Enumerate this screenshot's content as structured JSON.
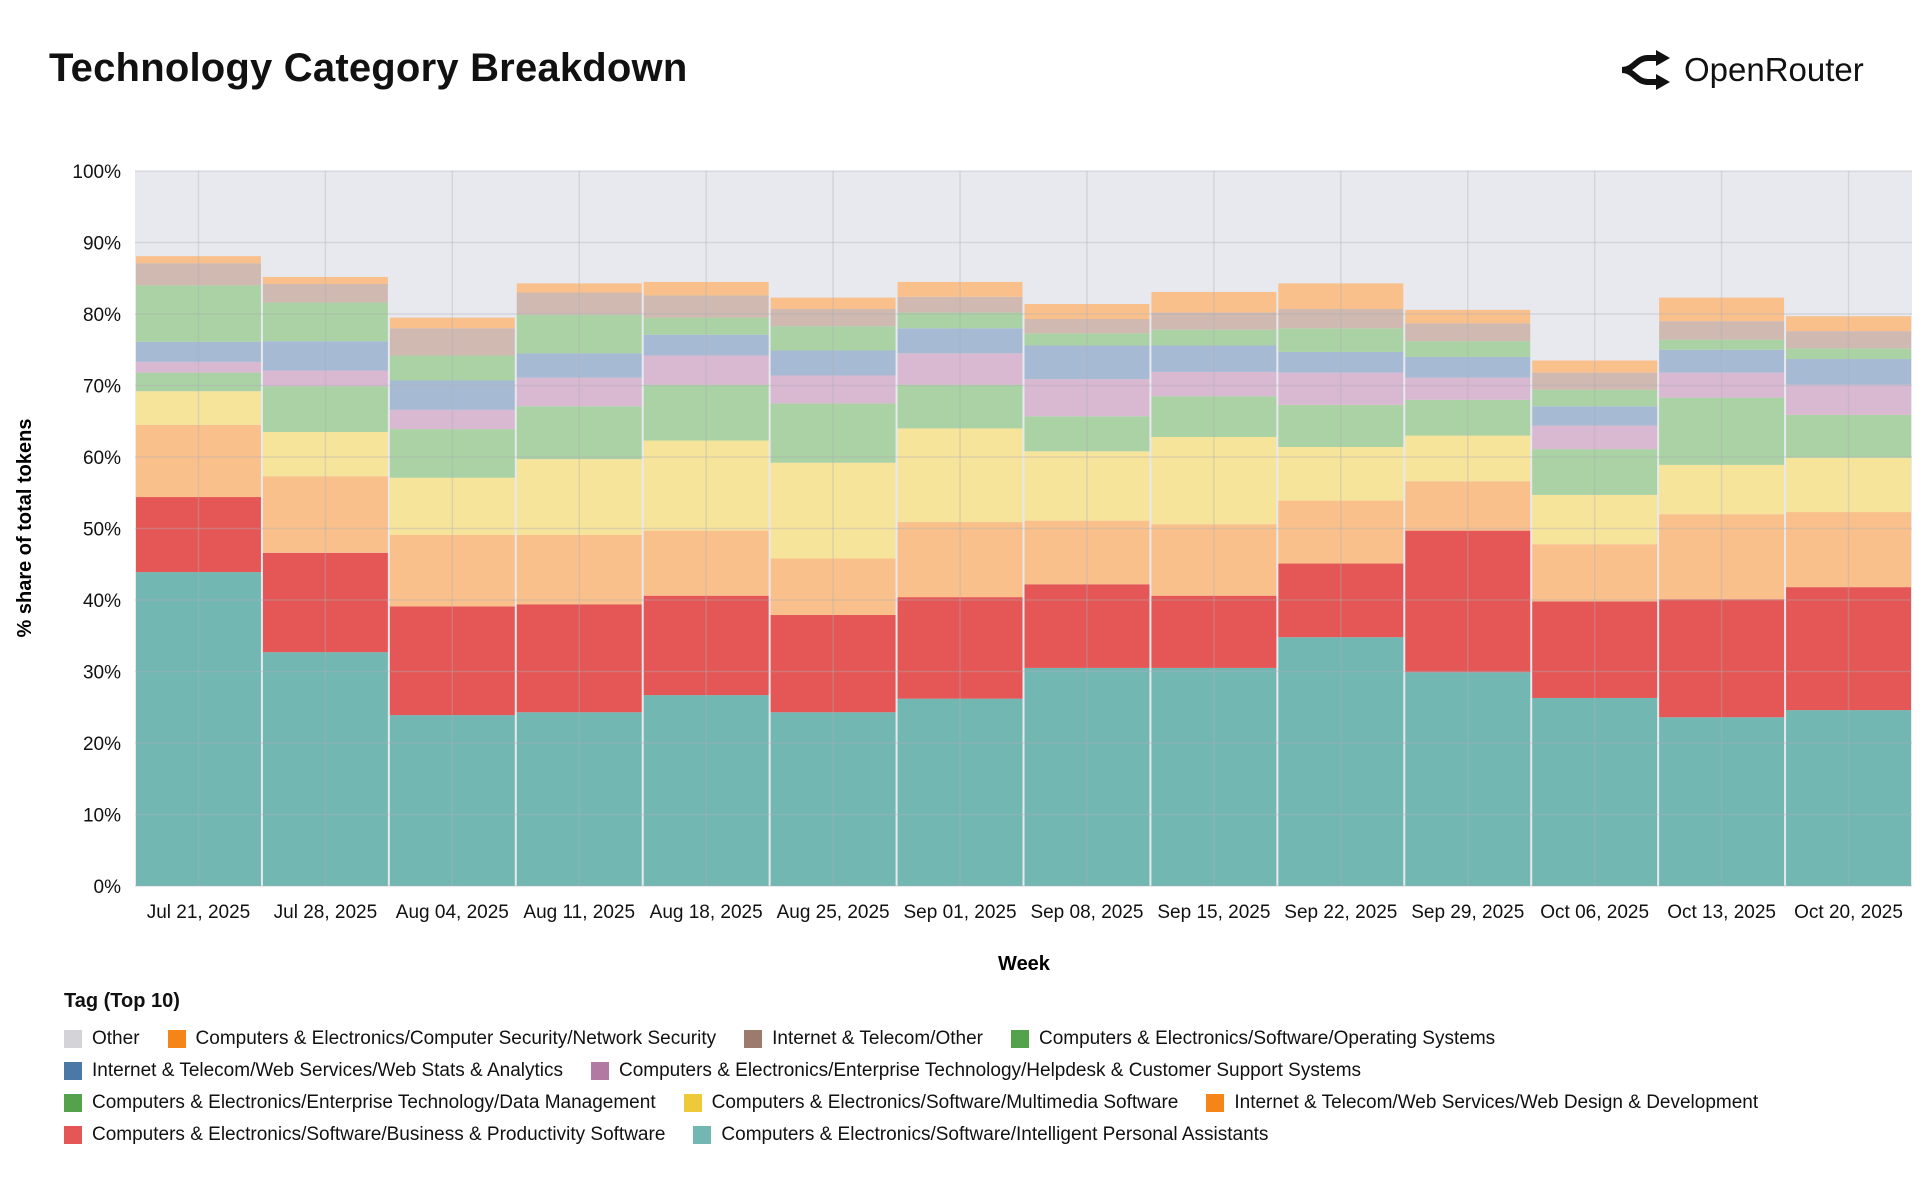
{
  "header": {
    "title": "Technology Category Breakdown",
    "logo_text": "OpenRouter"
  },
  "chart_data": {
    "type": "bar",
    "stacked": true,
    "title": "Technology Category Breakdown",
    "xlabel": "Week",
    "ylabel": "% share of total tokens",
    "ylim": [
      0,
      100
    ],
    "yticks": [
      "0%",
      "10%",
      "20%",
      "30%",
      "40%",
      "50%",
      "60%",
      "70%",
      "80%",
      "90%",
      "100%"
    ],
    "grid": true,
    "legend_title": "Tag (Top 10)",
    "legend_position": "bottom",
    "categories": [
      "Jul 21, 2025",
      "Jul 28, 2025",
      "Aug 04, 2025",
      "Aug 11, 2025",
      "Aug 18, 2025",
      "Aug 25, 2025",
      "Sep 01, 2025",
      "Sep 08, 2025",
      "Sep 15, 2025",
      "Sep 22, 2025",
      "Sep 29, 2025",
      "Oct 06, 2025",
      "Oct 13, 2025",
      "Oct 20, 2025"
    ],
    "series": [
      {
        "name": "Computers & Electronics/Software/Intelligent Personal Assistants",
        "color": "#72b7b2",
        "fill": "#72b7b2",
        "values": [
          43.9,
          32.7,
          23.9,
          24.3,
          26.7,
          24.3,
          26.2,
          30.5,
          30.5,
          34.8,
          29.9,
          26.3,
          23.6,
          24.6
        ]
      },
      {
        "name": "Computers & Electronics/Software/Business & Productivity Software",
        "color": "#e45756",
        "fill": "#e45756",
        "values": [
          10.5,
          13.9,
          15.2,
          15.1,
          13.9,
          13.6,
          14.2,
          11.7,
          10.1,
          10.3,
          19.8,
          13.5,
          16.5,
          17.2
        ]
      },
      {
        "name": "Internet & Telecom/Web Services/Web Design & Development",
        "color": "#f58518",
        "fill": "#f9c08b",
        "values": [
          10.1,
          10.7,
          10.0,
          9.7,
          9.1,
          7.9,
          10.5,
          8.9,
          10.0,
          8.8,
          6.9,
          8.0,
          11.9,
          10.5
        ]
      },
      {
        "name": "Computers & Electronics/Software/Multimedia Software",
        "color": "#eeca3b",
        "fill": "#f6e49b",
        "values": [
          4.7,
          6.2,
          8.0,
          10.6,
          12.6,
          13.4,
          13.1,
          9.7,
          12.2,
          7.5,
          6.4,
          6.9,
          6.9,
          7.6
        ]
      },
      {
        "name": "Computers & Electronics/Enterprise Technology/Data Management",
        "color": "#54a24b",
        "fill": "#aad2a4",
        "values": [
          2.6,
          6.4,
          6.8,
          7.4,
          7.8,
          8.3,
          6.1,
          4.9,
          5.7,
          5.9,
          5.0,
          6.4,
          9.4,
          6.0
        ]
      },
      {
        "name": "Computers & Electronics/Enterprise Technology/Helpdesk & Customer Support Systems",
        "color": "#b279a2",
        "fill": "#d9b9d1",
        "values": [
          1.5,
          2.2,
          2.7,
          4.0,
          4.1,
          3.9,
          4.4,
          5.2,
          3.4,
          4.5,
          3.1,
          3.3,
          3.5,
          4.2
        ]
      },
      {
        "name": "Internet & Telecom/Web Services/Web Stats & Analytics",
        "color": "#4c78a8",
        "fill": "#a6bad3",
        "values": [
          2.8,
          4.1,
          4.1,
          3.4,
          2.9,
          3.5,
          3.5,
          4.7,
          3.7,
          2.9,
          2.9,
          2.7,
          3.2,
          3.6
        ]
      },
      {
        "name": "Computers & Electronics/Software/Operating Systems",
        "color": "#54a24b",
        "fill": "#aad2a4",
        "values": [
          7.9,
          5.4,
          3.5,
          5.4,
          2.4,
          3.4,
          2.2,
          1.7,
          2.2,
          3.3,
          2.2,
          2.3,
          1.4,
          1.5
        ]
      },
      {
        "name": "Internet & Telecom/Other",
        "color": "#9d7a6e",
        "fill": "#cfb9b0",
        "values": [
          3.1,
          2.6,
          3.8,
          3.1,
          3.1,
          2.4,
          2.2,
          2.0,
          2.4,
          2.7,
          2.5,
          2.4,
          2.6,
          2.4
        ]
      },
      {
        "name": "Computers & Electronics/Computer Security/Network Security",
        "color": "#f58518",
        "fill": "#f9c08b",
        "values": [
          1.0,
          1.0,
          1.5,
          1.3,
          1.9,
          1.6,
          2.1,
          2.1,
          2.9,
          3.6,
          1.9,
          1.7,
          3.3,
          2.1
        ]
      },
      {
        "name": "Other",
        "color": "#d4d4d8",
        "fill": "#e8e9ee",
        "values": [
          11.9,
          14.8,
          20.5,
          15.7,
          15.5,
          17.7,
          15.5,
          18.6,
          16.9,
          15.7,
          19.4,
          26.5,
          17.7,
          20.3
        ]
      }
    ],
    "legend_rows": [
      [
        "Other",
        "Computers & Electronics/Computer Security/Network Security",
        "Internet & Telecom/Other",
        "Computers & Electronics/Software/Operating Systems"
      ],
      [
        "Internet & Telecom/Web Services/Web Stats & Analytics",
        "Computers & Electronics/Enterprise Technology/Helpdesk & Customer Support Systems"
      ],
      [
        "Computers & Electronics/Enterprise Technology/Data Management",
        "Computers & Electronics/Software/Multimedia Software",
        "Internet & Telecom/Web Services/Web Design & Development"
      ],
      [
        "Computers & Electronics/Software/Business & Productivity Software",
        "Computers & Electronics/Software/Intelligent Personal Assistants"
      ]
    ]
  }
}
